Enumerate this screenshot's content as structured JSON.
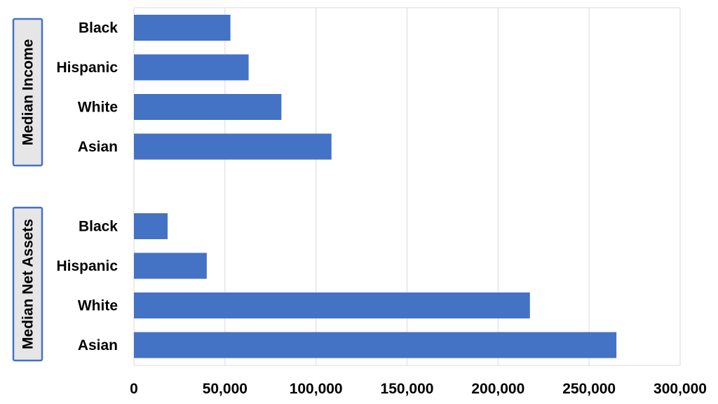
{
  "chart_data": {
    "type": "bar",
    "orientation": "horizontal",
    "xlim": [
      0,
      300000
    ],
    "xticks": [
      0,
      50000,
      100000,
      150000,
      200000,
      250000,
      300000
    ],
    "xtick_labels": [
      "0",
      "50,000",
      "100,000",
      "150,000",
      "200,000",
      "250,000",
      "300,000"
    ],
    "grid": true,
    "bar_color": "#4472C4",
    "group_box_fill": "#E6E6E6",
    "group_box_border": "#4472C4",
    "groups": [
      {
        "name": "Median Income",
        "categories": [
          "Black",
          "Hispanic",
          "White",
          "Asian"
        ],
        "values": [
          53000,
          63000,
          81000,
          108500
        ]
      },
      {
        "name": "Median Net Assets",
        "categories": [
          "Black",
          "Hispanic",
          "White",
          "Asian"
        ],
        "values": [
          18500,
          40000,
          217500,
          265000
        ]
      }
    ]
  }
}
